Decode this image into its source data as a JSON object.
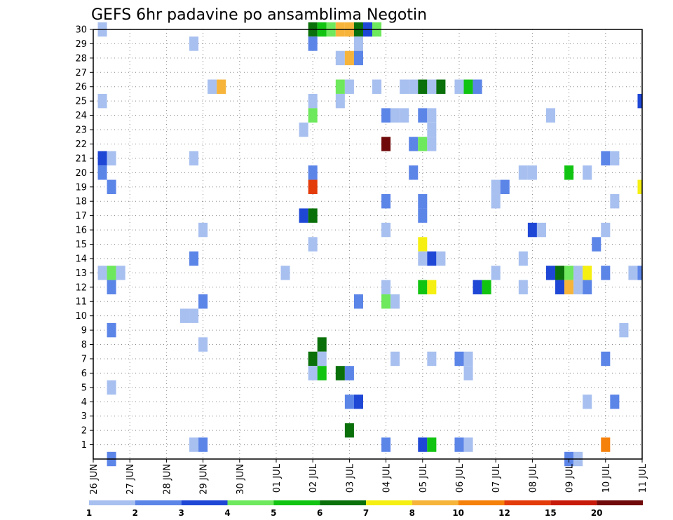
{
  "chart_data": {
    "type": "heatmap",
    "title": "GEFS 6hr padavine po ansamblima Negotin",
    "y_ticks": [
      "1",
      "2",
      "3",
      "4",
      "5",
      "6",
      "7",
      "8",
      "9",
      "10",
      "11",
      "12",
      "13",
      "14",
      "15",
      "16",
      "17",
      "18",
      "19",
      "20",
      "21",
      "22",
      "23",
      "24",
      "25",
      "26",
      "27",
      "28",
      "29",
      "30"
    ],
    "x_ticks": [
      "26 JUN",
      "27 JUN",
      "28 JUN",
      "29 JUN",
      "30 JUN",
      "01 JUL",
      "02 JUL",
      "03 JUL",
      "04 JUL",
      "05 JUL",
      "06 JUL",
      "07 JUL",
      "08 JUL",
      "09 JUL",
      "10 JUL",
      "11 JUL"
    ],
    "xlim_days": [
      0,
      15
    ],
    "ylim": [
      0,
      30
    ],
    "grid": true,
    "colorbar": {
      "labels": [
        "1",
        "2",
        "3",
        "4",
        "5",
        "6",
        "7",
        "8",
        "10",
        "12",
        "15",
        "20"
      ],
      "colors": [
        "#a8c0f0",
        "#5c85e8",
        "#1f47d6",
        "#6ee85c",
        "#12c412",
        "#0a700a",
        "#f5f012",
        "#f7b43a",
        "#f5800a",
        "#e33b0a",
        "#c81a0a",
        "#700a0a"
      ]
    },
    "cells": [
      {
        "t": 0.25,
        "y": 30,
        "v": 1
      },
      {
        "t": 0.25,
        "y": 25,
        "v": 1
      },
      {
        "t": 0.25,
        "y": 21,
        "v": 3
      },
      {
        "t": 0.5,
        "y": 21,
        "v": 1
      },
      {
        "t": 0.25,
        "y": 20,
        "v": 2
      },
      {
        "t": 0.5,
        "y": 19,
        "v": 2
      },
      {
        "t": 0.25,
        "y": 13,
        "v": 1
      },
      {
        "t": 0.5,
        "y": 13,
        "v": 4
      },
      {
        "t": 0.75,
        "y": 13,
        "v": 1
      },
      {
        "t": 0.5,
        "y": 12,
        "v": 2
      },
      {
        "t": 0.5,
        "y": 9,
        "v": 2
      },
      {
        "t": 0.5,
        "y": 5,
        "v": 1
      },
      {
        "t": 0.5,
        "y": 0,
        "v": 2
      },
      {
        "t": 2.75,
        "y": 29,
        "v": 1
      },
      {
        "t": 2.75,
        "y": 21,
        "v": 1
      },
      {
        "t": 2.75,
        "y": 14,
        "v": 2
      },
      {
        "t": 2.5,
        "y": 10,
        "v": 1
      },
      {
        "t": 2.75,
        "y": 10,
        "v": 1
      },
      {
        "t": 2.75,
        "y": 1,
        "v": 1
      },
      {
        "t": 3.0,
        "y": 1,
        "v": 2
      },
      {
        "t": 3.0,
        "y": 16,
        "v": 1
      },
      {
        "t": 3.0,
        "y": 11,
        "v": 2
      },
      {
        "t": 3.0,
        "y": 8,
        "v": 1
      },
      {
        "t": 3.25,
        "y": 26,
        "v": 1
      },
      {
        "t": 3.5,
        "y": 26,
        "v": 9
      },
      {
        "t": 5.25,
        "y": 13,
        "v": 1
      },
      {
        "t": 5.75,
        "y": 23,
        "v": 1
      },
      {
        "t": 5.75,
        "y": 17,
        "v": 3
      },
      {
        "t": 6.0,
        "y": 30,
        "v": 6
      },
      {
        "t": 6.0,
        "y": 29,
        "v": 2
      },
      {
        "t": 6.0,
        "y": 25,
        "v": 1
      },
      {
        "t": 6.0,
        "y": 24,
        "v": 4
      },
      {
        "t": 6.0,
        "y": 20,
        "v": 2
      },
      {
        "t": 6.0,
        "y": 19,
        "v": 12
      },
      {
        "t": 6.0,
        "y": 17,
        "v": 6
      },
      {
        "t": 6.0,
        "y": 15,
        "v": 1
      },
      {
        "t": 6.0,
        "y": 7,
        "v": 6
      },
      {
        "t": 6.0,
        "y": 6,
        "v": 1
      },
      {
        "t": 6.25,
        "y": 30,
        "v": 5
      },
      {
        "t": 6.25,
        "y": 8,
        "v": 6
      },
      {
        "t": 6.25,
        "y": 7,
        "v": 1
      },
      {
        "t": 6.25,
        "y": 6,
        "v": 5
      },
      {
        "t": 6.5,
        "y": 30,
        "v": 4
      },
      {
        "t": 6.75,
        "y": 30,
        "v": 8
      },
      {
        "t": 6.75,
        "y": 28,
        "v": 1
      },
      {
        "t": 6.75,
        "y": 26,
        "v": 4
      },
      {
        "t": 6.75,
        "y": 25,
        "v": 1
      },
      {
        "t": 6.75,
        "y": 6,
        "v": 6
      },
      {
        "t": 7.0,
        "y": 30,
        "v": 8
      },
      {
        "t": 7.0,
        "y": 28,
        "v": 9
      },
      {
        "t": 7.0,
        "y": 26,
        "v": 1
      },
      {
        "t": 7.0,
        "y": 6,
        "v": 2
      },
      {
        "t": 7.0,
        "y": 4,
        "v": 2
      },
      {
        "t": 7.0,
        "y": 2,
        "v": 6
      },
      {
        "t": 7.25,
        "y": 30,
        "v": 6
      },
      {
        "t": 7.25,
        "y": 29,
        "v": 1
      },
      {
        "t": 7.25,
        "y": 28,
        "v": 2
      },
      {
        "t": 7.25,
        "y": 11,
        "v": 2
      },
      {
        "t": 7.25,
        "y": 4,
        "v": 3
      },
      {
        "t": 7.5,
        "y": 30,
        "v": 3
      },
      {
        "t": 7.75,
        "y": 30,
        "v": 4
      },
      {
        "t": 7.75,
        "y": 26,
        "v": 1
      },
      {
        "t": 8.0,
        "y": 24,
        "v": 2
      },
      {
        "t": 8.0,
        "y": 22,
        "v": 20
      },
      {
        "t": 8.0,
        "y": 18,
        "v": 2
      },
      {
        "t": 8.0,
        "y": 16,
        "v": 1
      },
      {
        "t": 8.0,
        "y": 12,
        "v": 1
      },
      {
        "t": 8.0,
        "y": 11,
        "v": 4
      },
      {
        "t": 8.0,
        "y": 1,
        "v": 2
      },
      {
        "t": 8.25,
        "y": 24,
        "v": 1
      },
      {
        "t": 8.25,
        "y": 11,
        "v": 1
      },
      {
        "t": 8.25,
        "y": 7,
        "v": 1
      },
      {
        "t": 8.5,
        "y": 24,
        "v": 1
      },
      {
        "t": 8.5,
        "y": 26,
        "v": 1
      },
      {
        "t": 8.75,
        "y": 26,
        "v": 1
      },
      {
        "t": 8.75,
        "y": 22,
        "v": 2
      },
      {
        "t": 8.75,
        "y": 20,
        "v": 2
      },
      {
        "t": 9.0,
        "y": 26,
        "v": 6
      },
      {
        "t": 9.0,
        "y": 24,
        "v": 2
      },
      {
        "t": 9.0,
        "y": 22,
        "v": 4
      },
      {
        "t": 9.0,
        "y": 18,
        "v": 2
      },
      {
        "t": 9.0,
        "y": 17,
        "v": 2
      },
      {
        "t": 9.0,
        "y": 15,
        "v": 7
      },
      {
        "t": 9.0,
        "y": 14,
        "v": 1
      },
      {
        "t": 9.0,
        "y": 12,
        "v": 5
      },
      {
        "t": 9.0,
        "y": 1,
        "v": 3
      },
      {
        "t": 9.25,
        "y": 26,
        "v": 1
      },
      {
        "t": 9.25,
        "y": 24,
        "v": 1
      },
      {
        "t": 9.25,
        "y": 23,
        "v": 1
      },
      {
        "t": 9.25,
        "y": 22,
        "v": 1
      },
      {
        "t": 9.25,
        "y": 14,
        "v": 3
      },
      {
        "t": 9.25,
        "y": 12,
        "v": 7
      },
      {
        "t": 9.25,
        "y": 7,
        "v": 1
      },
      {
        "t": 9.25,
        "y": 1,
        "v": 5
      },
      {
        "t": 9.5,
        "y": 26,
        "v": 6
      },
      {
        "t": 9.5,
        "y": 14,
        "v": 1
      },
      {
        "t": 10.0,
        "y": 26,
        "v": 1
      },
      {
        "t": 10.0,
        "y": 7,
        "v": 2
      },
      {
        "t": 10.0,
        "y": 1,
        "v": 2
      },
      {
        "t": 10.25,
        "y": 26,
        "v": 5
      },
      {
        "t": 10.25,
        "y": 7,
        "v": 1
      },
      {
        "t": 10.25,
        "y": 6,
        "v": 1
      },
      {
        "t": 10.25,
        "y": 1,
        "v": 1
      },
      {
        "t": 10.5,
        "y": 26,
        "v": 2
      },
      {
        "t": 10.5,
        "y": 12,
        "v": 3
      },
      {
        "t": 10.75,
        "y": 12,
        "v": 5
      },
      {
        "t": 11.0,
        "y": 19,
        "v": 1
      },
      {
        "t": 11.0,
        "y": 18,
        "v": 1
      },
      {
        "t": 11.0,
        "y": 13,
        "v": 1
      },
      {
        "t": 11.25,
        "y": 19,
        "v": 2
      },
      {
        "t": 11.75,
        "y": 20,
        "v": 1
      },
      {
        "t": 11.75,
        "y": 14,
        "v": 1
      },
      {
        "t": 11.75,
        "y": 12,
        "v": 1
      },
      {
        "t": 12.0,
        "y": 20,
        "v": 1
      },
      {
        "t": 12.0,
        "y": 16,
        "v": 3
      },
      {
        "t": 12.25,
        "y": 16,
        "v": 1
      },
      {
        "t": 12.5,
        "y": 24,
        "v": 1
      },
      {
        "t": 12.5,
        "y": 13,
        "v": 3
      },
      {
        "t": 12.75,
        "y": 13,
        "v": 6
      },
      {
        "t": 12.75,
        "y": 12,
        "v": 3
      },
      {
        "t": 13.0,
        "y": 20,
        "v": 5
      },
      {
        "t": 13.0,
        "y": 13,
        "v": 4
      },
      {
        "t": 13.0,
        "y": 12,
        "v": 9
      },
      {
        "t": 13.0,
        "y": 0,
        "v": 2
      },
      {
        "t": 13.25,
        "y": 13,
        "v": 1
      },
      {
        "t": 13.25,
        "y": 12,
        "v": 1
      },
      {
        "t": 13.25,
        "y": 0,
        "v": 1
      },
      {
        "t": 13.5,
        "y": 20,
        "v": 1
      },
      {
        "t": 13.5,
        "y": 13,
        "v": 7
      },
      {
        "t": 13.5,
        "y": 12,
        "v": 2
      },
      {
        "t": 13.5,
        "y": 4,
        "v": 1
      },
      {
        "t": 13.75,
        "y": 15,
        "v": 2
      },
      {
        "t": 14.0,
        "y": 21,
        "v": 2
      },
      {
        "t": 14.0,
        "y": 16,
        "v": 1
      },
      {
        "t": 14.0,
        "y": 13,
        "v": 2
      },
      {
        "t": 14.0,
        "y": 7,
        "v": 2
      },
      {
        "t": 14.0,
        "y": 1,
        "v": 10
      },
      {
        "t": 14.25,
        "y": 21,
        "v": 1
      },
      {
        "t": 14.25,
        "y": 18,
        "v": 1
      },
      {
        "t": 14.25,
        "y": 4,
        "v": 2
      },
      {
        "t": 14.5,
        "y": 9,
        "v": 1
      },
      {
        "t": 14.75,
        "y": 13,
        "v": 1
      },
      {
        "t": 15.0,
        "y": 25,
        "v": 3
      },
      {
        "t": 15.0,
        "y": 19,
        "v": 7
      },
      {
        "t": 15.0,
        "y": 13,
        "v": 2
      }
    ]
  }
}
